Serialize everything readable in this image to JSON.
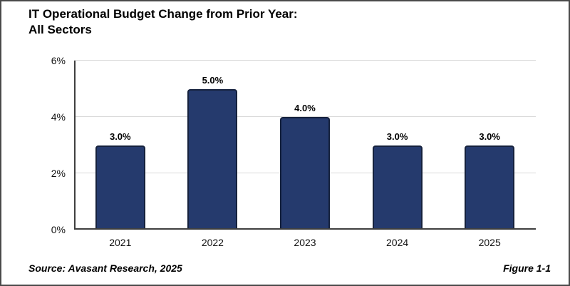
{
  "header": {
    "title_line1": "IT Operational Budget Change from Prior Year:",
    "title_line2": "All Sectors"
  },
  "chart_data": {
    "type": "bar",
    "title": "IT Operational Budget Change from Prior Year: All Sectors",
    "categories": [
      "2021",
      "2022",
      "2023",
      "2024",
      "2025"
    ],
    "values": [
      3.0,
      5.0,
      4.0,
      3.0,
      3.0
    ],
    "value_labels": [
      "3.0%",
      "5.0%",
      "4.0%",
      "3.0%",
      "3.0%"
    ],
    "xlabel": "",
    "ylabel": "",
    "ylim": [
      0,
      6
    ],
    "yticks": [
      0,
      2,
      4,
      6
    ],
    "ytick_labels": [
      "0%",
      "2%",
      "4%",
      "6%"
    ],
    "grid": true,
    "legend": "none",
    "bar_color": "#253a6d",
    "bar_border_color": "#15213d"
  },
  "footer": {
    "source": "Source: Avasant Research, 2025",
    "figure": "Figure 1-1"
  }
}
